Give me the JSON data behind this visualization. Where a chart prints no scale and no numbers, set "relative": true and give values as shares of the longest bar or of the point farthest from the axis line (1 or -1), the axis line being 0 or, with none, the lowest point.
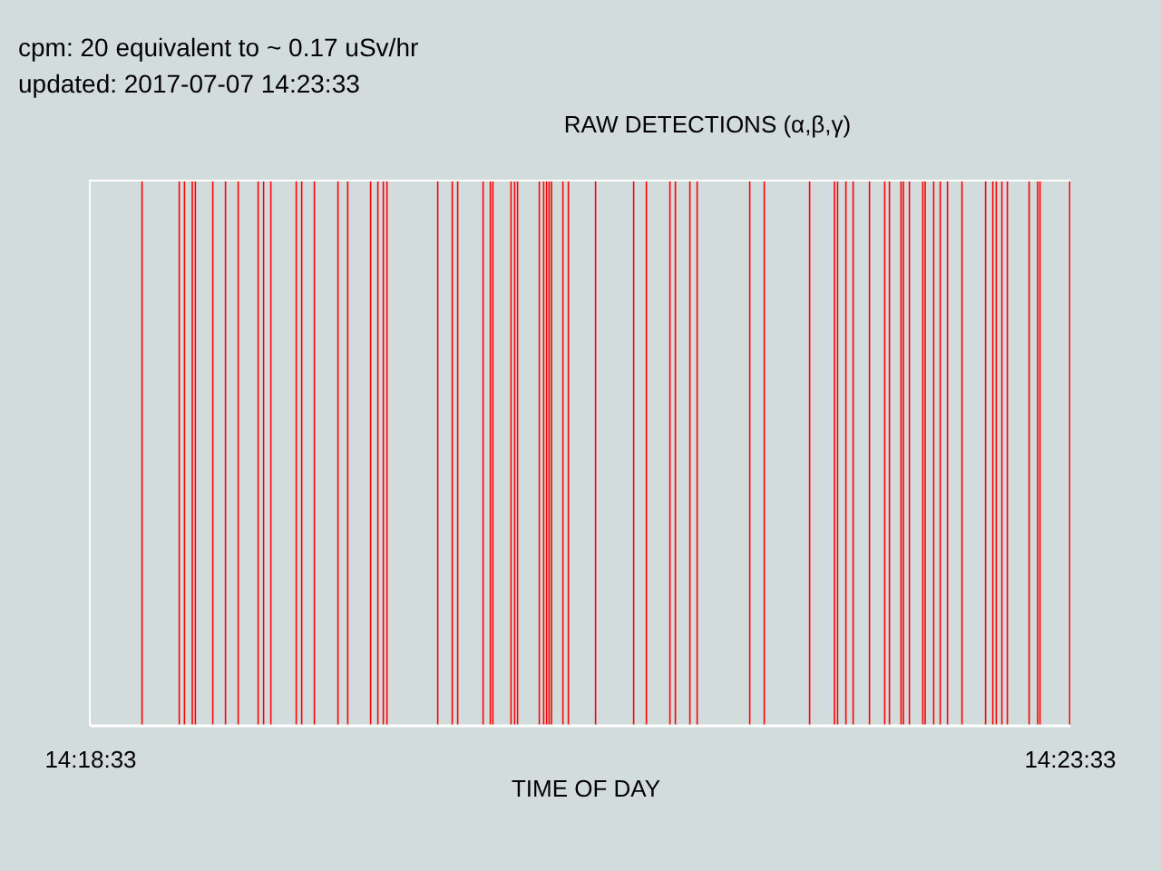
{
  "chart_data": {
    "type": "bar",
    "relative": true,
    "title": "RAW DETECTIONS (α,β,γ)",
    "xlabel": "TIME OF DAY",
    "annotations": [
      "cpm: 20 equivalent to ~ 0.17 uSv/hr",
      "updated: 2017-07-07 14:23:33"
    ],
    "xlim": [
      14.309167,
      14.3925
    ],
    "xticks": [
      {
        "value": 14.309167,
        "label": "14:18:33"
      },
      {
        "value": 14.3925,
        "label": "14:23:33"
      }
    ],
    "x": [
      14.313534,
      14.3167,
      14.317145,
      14.317809,
      14.318071,
      14.319553,
      14.320633,
      14.321713,
      14.323411,
      14.323874,
      14.324491,
      14.326652,
      14.327115,
      14.328195,
      14.330201,
      14.331034,
      14.332979,
      14.333596,
      14.334059,
      14.334368,
      14.338689,
      14.339923,
      14.340386,
      14.342547,
      14.343164,
      14.34338,
      14.344923,
      14.345232,
      14.345479,
      14.347331,
      14.347701,
      14.347948,
      14.348164,
      14.348365,
      14.349337,
      14.3498,
      14.352115,
      14.355355,
      14.356436,
      14.358442,
      14.358905,
      14.360139,
      14.360757,
      14.365232,
      14.366466,
      14.370324,
      14.372439,
      14.372701,
      14.373411,
      14.374028,
      14.375417,
      14.376713,
      14.377115,
      14.378102,
      14.378303,
      14.378812,
      14.379954,
      14.380155,
      14.38088,
      14.381436,
      14.382053,
      14.383287,
      14.385294,
      14.385911,
      14.386204,
      14.386682,
      14.387145,
      14.388997,
      14.389723,
      14.389923,
      14.39245
    ],
    "values": [
      1,
      1,
      1,
      1,
      1,
      1,
      1,
      1,
      1,
      1,
      1,
      1,
      1,
      1,
      1,
      1,
      1,
      1,
      1,
      1,
      1,
      1,
      1,
      1,
      1,
      1,
      1,
      1,
      1,
      1,
      1,
      1,
      1,
      1,
      1,
      1,
      1,
      1,
      1,
      1,
      1,
      1,
      1,
      1,
      1,
      1,
      1,
      1,
      1,
      1,
      1,
      1,
      1,
      1,
      1,
      1,
      1,
      1,
      1,
      1,
      1,
      1,
      1,
      1,
      1,
      1,
      1,
      1,
      1,
      1,
      1
    ],
    "color": "#ff0000",
    "grid": false,
    "legend": false
  }
}
